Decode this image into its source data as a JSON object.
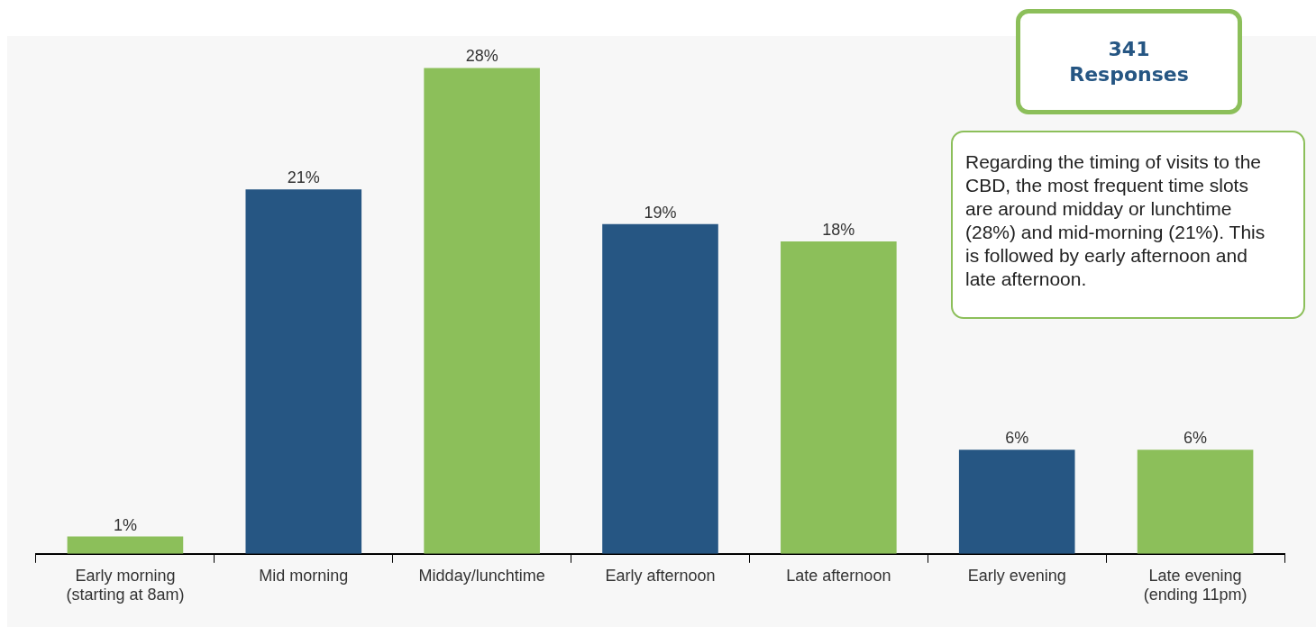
{
  "chart_data": {
    "type": "bar",
    "categories": [
      "Early morning (starting at 8am)",
      "Mid morning",
      "Midday/lunchtime",
      "Early afternoon",
      "Late afternoon",
      "Early evening",
      "Late evening (ending 11pm)"
    ],
    "values": [
      1,
      21,
      28,
      19,
      18,
      6,
      6
    ],
    "value_labels": [
      "1%",
      "21%",
      "28%",
      "19%",
      "18%",
      "6%",
      "6%"
    ],
    "colors": [
      "#8cbf5a",
      "#265683",
      "#8cbf5a",
      "#265683",
      "#8cbf5a",
      "#265683",
      "#8cbf5a"
    ],
    "grid": false,
    "legend": false,
    "tick_labels": "x",
    "annotations": [
      "341 Responses",
      "Regarding the timing of visits to the CBD, the most frequent time slots are around midday or lunchtime (28%) and mid-morning (21%). This is followed by early afternoon and late afternoon."
    ]
  }
}
